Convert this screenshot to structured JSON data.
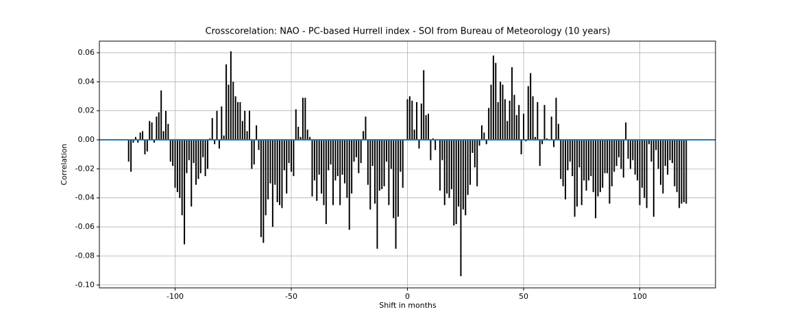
{
  "chart_data": {
    "type": "xcorr",
    "title": "Crosscorelation: NAO - PC-based Hurrell index - SOI from Bureau of Meteorology (10 years)",
    "x_label": "Shift in months",
    "y_label": "Correlation",
    "x": [
      -120,
      -119,
      -118,
      -117,
      -116,
      -115,
      -114,
      -113,
      -112,
      -111,
      -110,
      -109,
      -108,
      -107,
      -106,
      -105,
      -104,
      -103,
      -102,
      -101,
      -100,
      -99,
      -98,
      -97,
      -96,
      -95,
      -94,
      -93,
      -92,
      -91,
      -90,
      -89,
      -88,
      -87,
      -86,
      -85,
      -84,
      -83,
      -82,
      -81,
      -80,
      -79,
      -78,
      -77,
      -76,
      -75,
      -74,
      -73,
      -72,
      -71,
      -70,
      -69,
      -68,
      -67,
      -66,
      -65,
      -64,
      -63,
      -62,
      -61,
      -60,
      -59,
      -58,
      -57,
      -56,
      -55,
      -54,
      -53,
      -52,
      -51,
      -50,
      -49,
      -48,
      -47,
      -46,
      -45,
      -44,
      -43,
      -42,
      -41,
      -40,
      -39,
      -38,
      -37,
      -36,
      -35,
      -34,
      -33,
      -32,
      -31,
      -30,
      -29,
      -28,
      -27,
      -26,
      -25,
      -24,
      -23,
      -22,
      -21,
      -20,
      -19,
      -18,
      -17,
      -16,
      -15,
      -14,
      -13,
      -12,
      -11,
      -10,
      -9,
      -8,
      -7,
      -6,
      -5,
      -4,
      -3,
      -2,
      -1,
      0,
      1,
      2,
      3,
      4,
      5,
      6,
      7,
      8,
      9,
      10,
      11,
      12,
      13,
      14,
      15,
      16,
      17,
      18,
      19,
      20,
      21,
      22,
      23,
      24,
      25,
      26,
      27,
      28,
      29,
      30,
      31,
      32,
      33,
      34,
      35,
      36,
      37,
      38,
      39,
      40,
      41,
      42,
      43,
      44,
      45,
      46,
      47,
      48,
      49,
      50,
      51,
      52,
      53,
      54,
      55,
      56,
      57,
      58,
      59,
      60,
      61,
      62,
      63,
      64,
      65,
      66,
      67,
      68,
      69,
      70,
      71,
      72,
      73,
      74,
      75,
      76,
      77,
      78,
      79,
      80,
      81,
      82,
      83,
      84,
      85,
      86,
      87,
      88,
      89,
      90,
      91,
      92,
      93,
      94,
      95,
      96,
      97,
      98,
      99,
      100,
      101,
      102,
      103,
      104,
      105,
      106,
      107,
      108,
      109,
      110,
      111,
      112,
      113,
      114,
      115,
      116,
      117,
      118,
      119,
      120
    ],
    "values": [
      -0.015,
      -0.022,
      -0.002,
      0.002,
      -0.002,
      0.005,
      0.006,
      -0.01,
      -0.008,
      0.013,
      0.012,
      -0.002,
      0.016,
      0.019,
      0.034,
      0.006,
      0.02,
      0.011,
      -0.015,
      -0.018,
      -0.033,
      -0.036,
      -0.04,
      -0.052,
      -0.072,
      -0.023,
      -0.014,
      -0.046,
      -0.016,
      -0.031,
      -0.027,
      -0.023,
      -0.012,
      -0.025,
      -0.02,
      0.001,
      0.015,
      -0.003,
      0.02,
      -0.006,
      0.023,
      0.003,
      0.052,
      0.038,
      0.061,
      0.04,
      0.03,
      0.026,
      0.026,
      0.013,
      0.02,
      0.006,
      0.02,
      -0.02,
      -0.017,
      0.01,
      -0.007,
      -0.067,
      -0.071,
      -0.052,
      -0.041,
      -0.03,
      -0.06,
      -0.031,
      -0.043,
      -0.045,
      -0.047,
      -0.021,
      -0.037,
      -0.016,
      -0.022,
      -0.025,
      0.021,
      0.009,
      0.002,
      0.029,
      0.029,
      0.007,
      0.002,
      -0.039,
      -0.028,
      -0.042,
      -0.024,
      -0.037,
      -0.045,
      -0.058,
      -0.021,
      -0.017,
      -0.045,
      -0.028,
      -0.025,
      -0.045,
      -0.024,
      -0.03,
      -0.04,
      -0.062,
      -0.037,
      -0.015,
      -0.012,
      -0.023,
      -0.016,
      0.006,
      0.016,
      -0.031,
      -0.048,
      -0.018,
      -0.044,
      -0.075,
      -0.035,
      -0.034,
      -0.032,
      -0.015,
      -0.045,
      -0.02,
      -0.054,
      -0.075,
      -0.053,
      -0.022,
      -0.033,
      0.0,
      0.028,
      0.03,
      0.027,
      0.007,
      0.026,
      -0.006,
      0.025,
      0.048,
      0.017,
      0.018,
      -0.014,
      0.001,
      -0.007,
      0.0,
      -0.035,
      -0.014,
      -0.045,
      -0.037,
      -0.04,
      -0.034,
      -0.059,
      -0.058,
      -0.046,
      -0.094,
      -0.048,
      -0.052,
      -0.038,
      -0.031,
      -0.009,
      -0.019,
      -0.032,
      -0.004,
      0.01,
      0.005,
      -0.003,
      0.022,
      0.038,
      0.058,
      0.053,
      0.026,
      0.04,
      0.038,
      0.028,
      0.013,
      0.027,
      0.05,
      0.031,
      0.017,
      0.024,
      -0.01,
      0.018,
      -0.001,
      0.037,
      0.046,
      0.03,
      0.002,
      0.026,
      -0.018,
      -0.003,
      0.024,
      0.001,
      0.0,
      0.016,
      -0.005,
      0.029,
      0.011,
      -0.027,
      -0.032,
      -0.041,
      -0.021,
      -0.015,
      -0.025,
      -0.053,
      -0.046,
      -0.019,
      -0.045,
      -0.028,
      -0.035,
      -0.028,
      -0.025,
      -0.036,
      -0.054,
      -0.039,
      -0.036,
      -0.033,
      -0.023,
      -0.023,
      -0.044,
      -0.032,
      -0.022,
      -0.018,
      -0.012,
      -0.02,
      -0.026,
      0.012,
      -0.013,
      -0.02,
      -0.014,
      -0.024,
      -0.028,
      -0.045,
      -0.033,
      -0.04,
      -0.047,
      -0.003,
      -0.015,
      -0.053,
      -0.007,
      -0.02,
      -0.031,
      -0.037,
      -0.018,
      -0.024,
      -0.014,
      -0.016,
      -0.032,
      -0.036,
      -0.047,
      -0.044,
      -0.043,
      -0.044
    ],
    "color": "#000000",
    "hline": {
      "value": 0,
      "color": "#1f77b4"
    },
    "xlim": [
      -132.6,
      132.6
    ],
    "ylim": [
      -0.102,
      0.068
    ],
    "xticks": [
      -100,
      -50,
      0,
      50,
      100
    ],
    "yticks": [
      {
        "value": -0.1,
        "label": "-0.10"
      },
      -0.08,
      -0.06,
      -0.04,
      -0.02,
      {
        "value": 0,
        "label": "0.00"
      },
      0.02,
      0.04,
      0.06
    ],
    "grid": true
  }
}
